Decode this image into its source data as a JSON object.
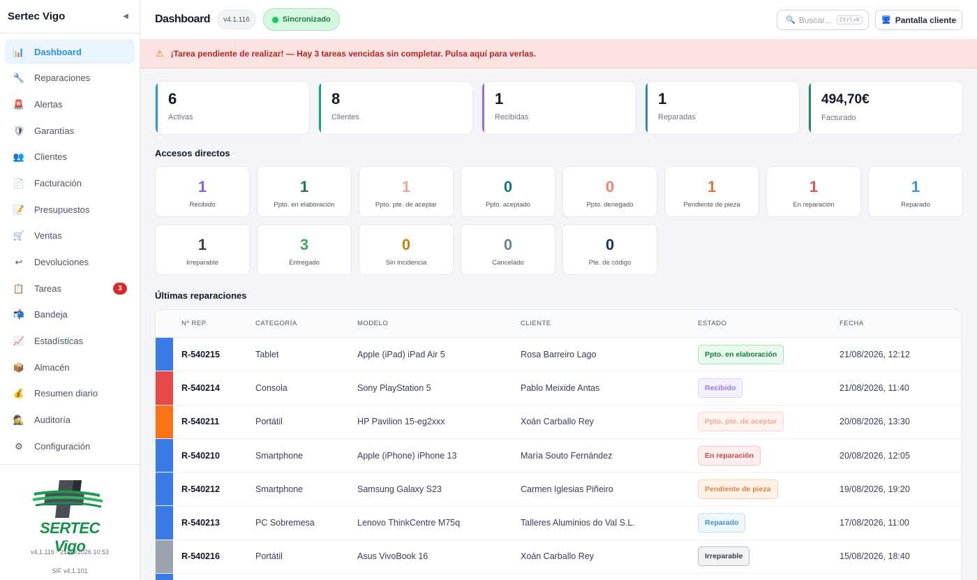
{
  "sidebar": {
    "brand": "Sertec Vigo",
    "collapse_icon": "◀",
    "items": [
      {
        "label": "Dashboard",
        "icon": "📊",
        "active": true
      },
      {
        "label": "Reparaciones",
        "icon": "🔧"
      },
      {
        "label": "Alertas",
        "icon": "🚨"
      },
      {
        "label": "Garantías",
        "icon": "🛡"
      },
      {
        "label": "Clientes",
        "icon": "👥"
      },
      {
        "label": "Facturación",
        "icon": "📄"
      },
      {
        "label": "Presupuestos",
        "icon": "📝"
      },
      {
        "label": "Ventas",
        "icon": "🛒"
      },
      {
        "label": "Devoluciones",
        "icon": "↩"
      },
      {
        "label": "Tareas",
        "icon": "📋",
        "badge": "3"
      },
      {
        "label": "Bandeja",
        "icon": "📬"
      },
      {
        "label": "Estadísticas",
        "icon": "📈"
      },
      {
        "label": "Almacén",
        "icon": "📦"
      },
      {
        "label": "Resumen diario",
        "icon": "💰"
      },
      {
        "label": "Auditoría",
        "icon": "🕵"
      },
      {
        "label": "Configuración",
        "icon": "⚙"
      }
    ],
    "logo_text": "SERTEC Vigo",
    "version_line": "v4.1.116 · 21/08/2026 10:53",
    "sif_line": "SIF v4.1.101"
  },
  "topbar": {
    "title": "Dashboard",
    "version": "v4.1.116",
    "sync_label": "Sincronizado",
    "search_placeholder": "Buscar...",
    "search_shortcut": "Ctrl+K",
    "client_screen_label": "Pantalla cliente"
  },
  "alert": {
    "text": "¡Tarea pendiente de realizar! — Hay 3 tareas vencidas sin completar. Pulsa aquí para verlas."
  },
  "stats": [
    {
      "value": "6",
      "label": "Activas",
      "color": "#2f8fd8"
    },
    {
      "value": "8",
      "label": "Clientes",
      "color": "#16a37a"
    },
    {
      "value": "1",
      "label": "Recibidas",
      "color": "#9b6bd6"
    },
    {
      "value": "1",
      "label": "Reparadas",
      "color": "#3b82c4"
    },
    {
      "value": "494,70€",
      "label": "Facturado",
      "color": "#1f8a5b"
    }
  ],
  "quick_access": {
    "title": "Accesos directos",
    "items": [
      {
        "value": "1",
        "label": "Recibido",
        "color": "#8b5cf6"
      },
      {
        "value": "1",
        "label": "Ppto. en elaboración",
        "color": "#15803d"
      },
      {
        "value": "1",
        "label": "Ppto. pte. de aceptar",
        "color": "#f3a593"
      },
      {
        "value": "0",
        "label": "Ppto. aceptado",
        "color": "#0e7490"
      },
      {
        "value": "0",
        "label": "Ppto. denegado",
        "color": "#f08070"
      },
      {
        "value": "1",
        "label": "Pendiente de pieza",
        "color": "#e0753f"
      },
      {
        "value": "1",
        "label": "En reparación",
        "color": "#d9534f"
      },
      {
        "value": "1",
        "label": "Reparado",
        "color": "#3b95d6"
      },
      {
        "value": "1",
        "label": "Irreparable",
        "color": "#374151"
      },
      {
        "value": "3",
        "label": "Entregado",
        "color": "#3fa85a"
      },
      {
        "value": "0",
        "label": "Sin incidencia",
        "color": "#b8860b"
      },
      {
        "value": "0",
        "label": "Cancelado",
        "color": "#708090"
      },
      {
        "value": "0",
        "label": "Pte. de código",
        "color": "#1e2a78"
      }
    ]
  },
  "repairs": {
    "title": "Últimas reparaciones",
    "headers": [
      "Nº REP.",
      "CATEGORÍA",
      "MODELO",
      "CLIENTE",
      "ESTADO",
      "FECHA"
    ],
    "rows": [
      {
        "id": "R-540215",
        "category": "Tablet",
        "model": "Apple (iPad) iPad Air 5",
        "client": "Rosa Barreiro Lago",
        "status": "Ppto. en elaboración",
        "date": "21/08/2026, 12:12",
        "bar": "#3b7be8",
        "badge_bg": "#e9f9ee",
        "badge_border": "#a7e3b9",
        "badge_color": "#15803d"
      },
      {
        "id": "R-540214",
        "category": "Consola",
        "model": "Sony PlayStation 5",
        "client": "Pablo Meixide Antas",
        "status": "Recibido",
        "date": "21/08/2026, 11:40",
        "bar": "#e54848",
        "badge_bg": "#f5efff",
        "badge_border": "#ddd0f7",
        "badge_color": "#9b7ad8"
      },
      {
        "id": "R-540211",
        "category": "Portátil",
        "model": "HP Pavilion 15-eg2xxx",
        "client": "Xoán Carballo Rey",
        "status": "Ppto. pte. de aceptar",
        "date": "20/08/2026, 13:30",
        "bar": "#f97316",
        "badge_bg": "#fff3f0",
        "badge_border": "#fbd8cf",
        "badge_color": "#f0a898"
      },
      {
        "id": "R-540210",
        "category": "Smartphone",
        "model": "Apple (iPhone) iPhone 13",
        "client": "María Souto Fernández",
        "status": "En reparación",
        "date": "20/08/2026, 12:05",
        "bar": "#3b7be8",
        "badge_bg": "#fdeeee",
        "badge_border": "#f5c6c6",
        "badge_color": "#d04848"
      },
      {
        "id": "R-540212",
        "category": "Smartphone",
        "model": "Samsung Galaxy S23",
        "client": "Carmen Iglesias Piñeiro",
        "status": "Pendiente de pieza",
        "date": "19/08/2026, 19:20",
        "bar": "#3b7be8",
        "badge_bg": "#fff2e8",
        "badge_border": "#f8d2b6",
        "badge_color": "#e08347"
      },
      {
        "id": "R-540213",
        "category": "PC Sobremesa",
        "model": "Lenovo ThinkCentre M75q",
        "client": "Talleres Aluminios do Val S.L.",
        "status": "Reparado",
        "date": "17/08/2026, 11:00",
        "bar": "#3b7be8",
        "badge_bg": "#eef6fd",
        "badge_border": "#c7e1f6",
        "badge_color": "#4a90c8"
      },
      {
        "id": "R-540216",
        "category": "Portátil",
        "model": "Asus VivoBook 16",
        "client": "Xoán Carballo Rey",
        "status": "Irreparable",
        "date": "15/08/2026, 18:40",
        "bar": "#9ca3af",
        "badge_bg": "#f1f2f4",
        "badge_border": "#b8bcc4",
        "badge_color": "#374151"
      }
    ]
  }
}
